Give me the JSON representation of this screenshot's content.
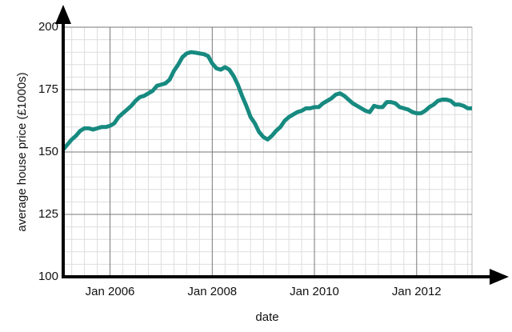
{
  "chart_data": {
    "type": "line",
    "x_label": "date",
    "y_label": "average house price (£1000s)",
    "x": [
      "2005-02",
      "2005-03",
      "2005-04",
      "2005-05",
      "2005-06",
      "2005-07",
      "2005-08",
      "2005-09",
      "2005-10",
      "2005-11",
      "2005-12",
      "2006-01",
      "2006-02",
      "2006-03",
      "2006-04",
      "2006-05",
      "2006-06",
      "2006-07",
      "2006-08",
      "2006-09",
      "2006-10",
      "2006-11",
      "2006-12",
      "2007-01",
      "2007-02",
      "2007-03",
      "2007-04",
      "2007-05",
      "2007-06",
      "2007-07",
      "2007-08",
      "2007-09",
      "2007-10",
      "2007-11",
      "2007-12",
      "2008-01",
      "2008-02",
      "2008-03",
      "2008-04",
      "2008-05",
      "2008-06",
      "2008-07",
      "2008-08",
      "2008-09",
      "2008-10",
      "2008-11",
      "2008-12",
      "2009-01",
      "2009-02",
      "2009-03",
      "2009-04",
      "2009-05",
      "2009-06",
      "2009-07",
      "2009-08",
      "2009-09",
      "2009-10",
      "2009-11",
      "2009-12",
      "2010-01",
      "2010-02",
      "2010-03",
      "2010-04",
      "2010-05",
      "2010-06",
      "2010-07",
      "2010-08",
      "2010-09",
      "2010-10",
      "2010-11",
      "2010-12",
      "2011-01",
      "2011-02",
      "2011-03",
      "2011-04",
      "2011-05",
      "2011-06",
      "2011-07",
      "2011-08",
      "2011-09",
      "2011-10",
      "2011-11",
      "2011-12",
      "2012-01",
      "2012-02",
      "2012-03",
      "2012-04",
      "2012-05",
      "2012-06",
      "2012-07",
      "2012-08",
      "2012-09",
      "2012-10",
      "2012-11",
      "2012-12",
      "2013-01",
      "2013-02"
    ],
    "series": [
      {
        "name": "average house price",
        "color": "#178a80",
        "values": [
          151,
          153,
          155,
          156.5,
          158.5,
          159.5,
          159.5,
          159,
          159.5,
          160,
          160,
          160.5,
          161.5,
          164,
          165.5,
          167,
          168.5,
          170.5,
          172,
          172.5,
          173.5,
          174.5,
          176.5,
          177,
          177.5,
          179,
          182.5,
          185,
          188,
          189.5,
          190,
          189.8,
          189.5,
          189.2,
          188.5,
          185.5,
          183.5,
          183,
          184,
          183,
          180.5,
          177,
          172.5,
          168.5,
          164,
          161.5,
          158,
          156,
          155,
          156.5,
          158.5,
          160,
          162.5,
          164,
          165,
          166,
          166.5,
          167.5,
          167.5,
          168,
          168,
          169.5,
          170.5,
          171.5,
          173,
          173.5,
          172.5,
          171,
          169.5,
          168.5,
          167.5,
          166.5,
          166,
          168.5,
          168,
          168,
          170,
          170,
          169.5,
          168,
          167.5,
          167,
          166,
          165.5,
          165.5,
          166.5,
          168,
          169,
          170.5,
          171,
          171,
          170.5,
          169,
          169,
          168.5,
          167.5,
          167.5
        ]
      }
    ],
    "xlim": [
      "2005-02",
      "2013-02"
    ],
    "xticks": [
      {
        "value": "2006-01",
        "label": "Jan 2006"
      },
      {
        "value": "2008-01",
        "label": "Jan 2008"
      },
      {
        "value": "2010-01",
        "label": "Jan 2010"
      },
      {
        "value": "2012-01",
        "label": "Jan 2012"
      }
    ],
    "ylim": [
      100,
      200
    ],
    "yticks": [
      100,
      125,
      150,
      175,
      200
    ],
    "grid": true,
    "minor_grid": true
  }
}
